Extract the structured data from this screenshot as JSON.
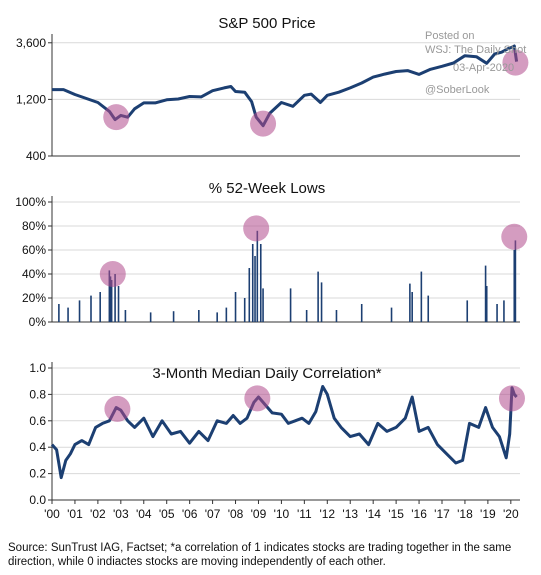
{
  "colors": {
    "line": "#1c3f72",
    "highlight": "#b04b8c",
    "grid": "#d9d9d9",
    "watermark": "#999999"
  },
  "watermark": {
    "posted": "Posted on",
    "outlet": "WSJ: The Daily Shot",
    "date": "03-Apr-2020",
    "handle": "@SoberLook"
  },
  "source_note": "Source: SunTrust IAG, Factset; *a correlation of 1 indicates stocks are trading together in the same direction, while 0 indiactes stocks are moving independently of each other.",
  "chart_data": [
    {
      "type": "line",
      "title": "S&P 500 Price",
      "y_scale": "log",
      "ylim": [
        400,
        3800
      ],
      "y_ticks": [
        "3,600",
        "1,200",
        "400"
      ],
      "y_tick_values": [
        3600,
        1200,
        400
      ],
      "series": [
        {
          "x": [
            2000.0,
            2000.5,
            2001.0,
            2001.5,
            2002.0,
            2002.5,
            2002.75,
            2003.0,
            2003.3,
            2003.6,
            2004.0,
            2004.5,
            2005.0,
            2005.5,
            2006.0,
            2006.5,
            2007.0,
            2007.5,
            2007.8,
            2008.0,
            2008.4,
            2008.7,
            2008.9,
            2009.2,
            2009.5,
            2010.0,
            2010.5,
            2011.0,
            2011.3,
            2011.7,
            2012.0,
            2012.5,
            2013.0,
            2013.5,
            2014.0,
            2014.5,
            2015.0,
            2015.5,
            2016.0,
            2016.5,
            2017.0,
            2017.5,
            2018.0,
            2018.5,
            2018.95,
            2019.3,
            2019.6,
            2019.9,
            2020.05,
            2020.15,
            2020.25
          ],
          "y": [
            1450,
            1450,
            1320,
            1220,
            1130,
            950,
            810,
            880,
            850,
            1000,
            1120,
            1120,
            1190,
            1210,
            1270,
            1260,
            1420,
            1500,
            1540,
            1400,
            1380,
            1150,
            850,
            720,
            920,
            1130,
            1050,
            1300,
            1330,
            1130,
            1300,
            1380,
            1500,
            1650,
            1850,
            1960,
            2060,
            2100,
            1950,
            2150,
            2280,
            2430,
            2800,
            2750,
            2420,
            2900,
            3000,
            3230,
            3300,
            3380,
            2500
          ]
        }
      ],
      "highlights": [
        {
          "x": 2002.8,
          "y": 850
        },
        {
          "x": 2009.2,
          "y": 750
        },
        {
          "x": 2020.2,
          "y": 2450
        }
      ]
    },
    {
      "type": "bar",
      "title": "% 52-Week Lows",
      "ylim": [
        0,
        1.0
      ],
      "y_ticks": [
        "100%",
        "80%",
        "60%",
        "40%",
        "20%",
        "0%"
      ],
      "y_tick_values": [
        1.0,
        0.8,
        0.6,
        0.4,
        0.2,
        0.0
      ],
      "series": [
        {
          "x": [
            2000.3,
            2000.7,
            2001.2,
            2001.7,
            2002.1,
            2002.5,
            2002.55,
            2002.6,
            2002.75,
            2002.9,
            2003.2,
            2004.3,
            2005.3,
            2006.4,
            2007.2,
            2007.6,
            2008.0,
            2008.4,
            2008.6,
            2008.75,
            2008.85,
            2008.95,
            2009.1,
            2009.2,
            2010.4,
            2011.1,
            2011.6,
            2011.75,
            2012.4,
            2013.5,
            2014.8,
            2015.6,
            2015.7,
            2016.1,
            2016.4,
            2018.1,
            2018.9,
            2018.95,
            2019.4,
            2019.7,
            2020.15,
            2020.2
          ],
          "y": [
            0.15,
            0.12,
            0.18,
            0.22,
            0.25,
            0.43,
            0.38,
            0.35,
            0.4,
            0.3,
            0.1,
            0.08,
            0.09,
            0.1,
            0.08,
            0.12,
            0.25,
            0.2,
            0.45,
            0.65,
            0.55,
            0.76,
            0.65,
            0.28,
            0.28,
            0.1,
            0.42,
            0.33,
            0.1,
            0.15,
            0.12,
            0.32,
            0.25,
            0.42,
            0.22,
            0.18,
            0.47,
            0.3,
            0.15,
            0.18,
            0.6,
            0.68
          ]
        }
      ],
      "highlights": [
        {
          "x": 2002.65,
          "y": 0.4
        },
        {
          "x": 2008.9,
          "y": 0.78
        },
        {
          "x": 2020.15,
          "y": 0.71
        }
      ]
    },
    {
      "type": "line",
      "title": "3-Month Median Daily Correlation*",
      "ylim": [
        0.0,
        1.0
      ],
      "y_ticks": [
        "1.0",
        "0.8",
        "0.6",
        "0.4",
        "0.2",
        "0.0"
      ],
      "y_tick_values": [
        1.0,
        0.8,
        0.6,
        0.4,
        0.2,
        0.0
      ],
      "x_ticks": [
        "'00",
        "'01",
        "'02",
        "'03",
        "'04",
        "'05",
        "'06",
        "'07",
        "'08",
        "'09",
        "'10",
        "'11",
        "'12",
        "'13",
        "'14",
        "'15",
        "'16",
        "'17",
        "'18",
        "'19",
        "'20"
      ],
      "x_tick_values": [
        2000,
        2001,
        2002,
        2003,
        2004,
        2005,
        2006,
        2007,
        2008,
        2009,
        2010,
        2011,
        2012,
        2013,
        2014,
        2015,
        2016,
        2017,
        2018,
        2019,
        2020
      ],
      "series": [
        {
          "x": [
            2000.0,
            2000.2,
            2000.4,
            2000.6,
            2000.8,
            2001.0,
            2001.3,
            2001.6,
            2001.9,
            2002.2,
            2002.5,
            2002.8,
            2003.0,
            2003.3,
            2003.6,
            2004.0,
            2004.4,
            2004.8,
            2005.2,
            2005.6,
            2006.0,
            2006.4,
            2006.8,
            2007.2,
            2007.6,
            2007.9,
            2008.2,
            2008.5,
            2008.8,
            2009.0,
            2009.3,
            2009.6,
            2010.0,
            2010.3,
            2010.6,
            2010.9,
            2011.2,
            2011.5,
            2011.8,
            2012.0,
            2012.3,
            2012.6,
            2013.0,
            2013.4,
            2013.8,
            2014.2,
            2014.6,
            2015.0,
            2015.4,
            2015.7,
            2016.0,
            2016.4,
            2016.8,
            2017.2,
            2017.6,
            2017.9,
            2018.2,
            2018.6,
            2018.9,
            2019.2,
            2019.5,
            2019.8,
            2019.95,
            2020.05,
            2020.15,
            2020.25
          ],
          "y": [
            0.42,
            0.38,
            0.17,
            0.3,
            0.35,
            0.42,
            0.45,
            0.42,
            0.55,
            0.58,
            0.6,
            0.7,
            0.68,
            0.6,
            0.55,
            0.62,
            0.48,
            0.6,
            0.5,
            0.52,
            0.43,
            0.52,
            0.45,
            0.6,
            0.58,
            0.64,
            0.58,
            0.62,
            0.74,
            0.78,
            0.72,
            0.66,
            0.65,
            0.58,
            0.6,
            0.62,
            0.58,
            0.67,
            0.86,
            0.8,
            0.62,
            0.55,
            0.48,
            0.5,
            0.42,
            0.58,
            0.52,
            0.55,
            0.62,
            0.78,
            0.52,
            0.55,
            0.42,
            0.35,
            0.28,
            0.3,
            0.58,
            0.55,
            0.7,
            0.55,
            0.48,
            0.32,
            0.5,
            0.85,
            0.8,
            0.78
          ]
        }
      ],
      "highlights": [
        {
          "x": 2002.85,
          "y": 0.69
        },
        {
          "x": 2008.95,
          "y": 0.77
        },
        {
          "x": 2020.05,
          "y": 0.77
        }
      ]
    }
  ]
}
